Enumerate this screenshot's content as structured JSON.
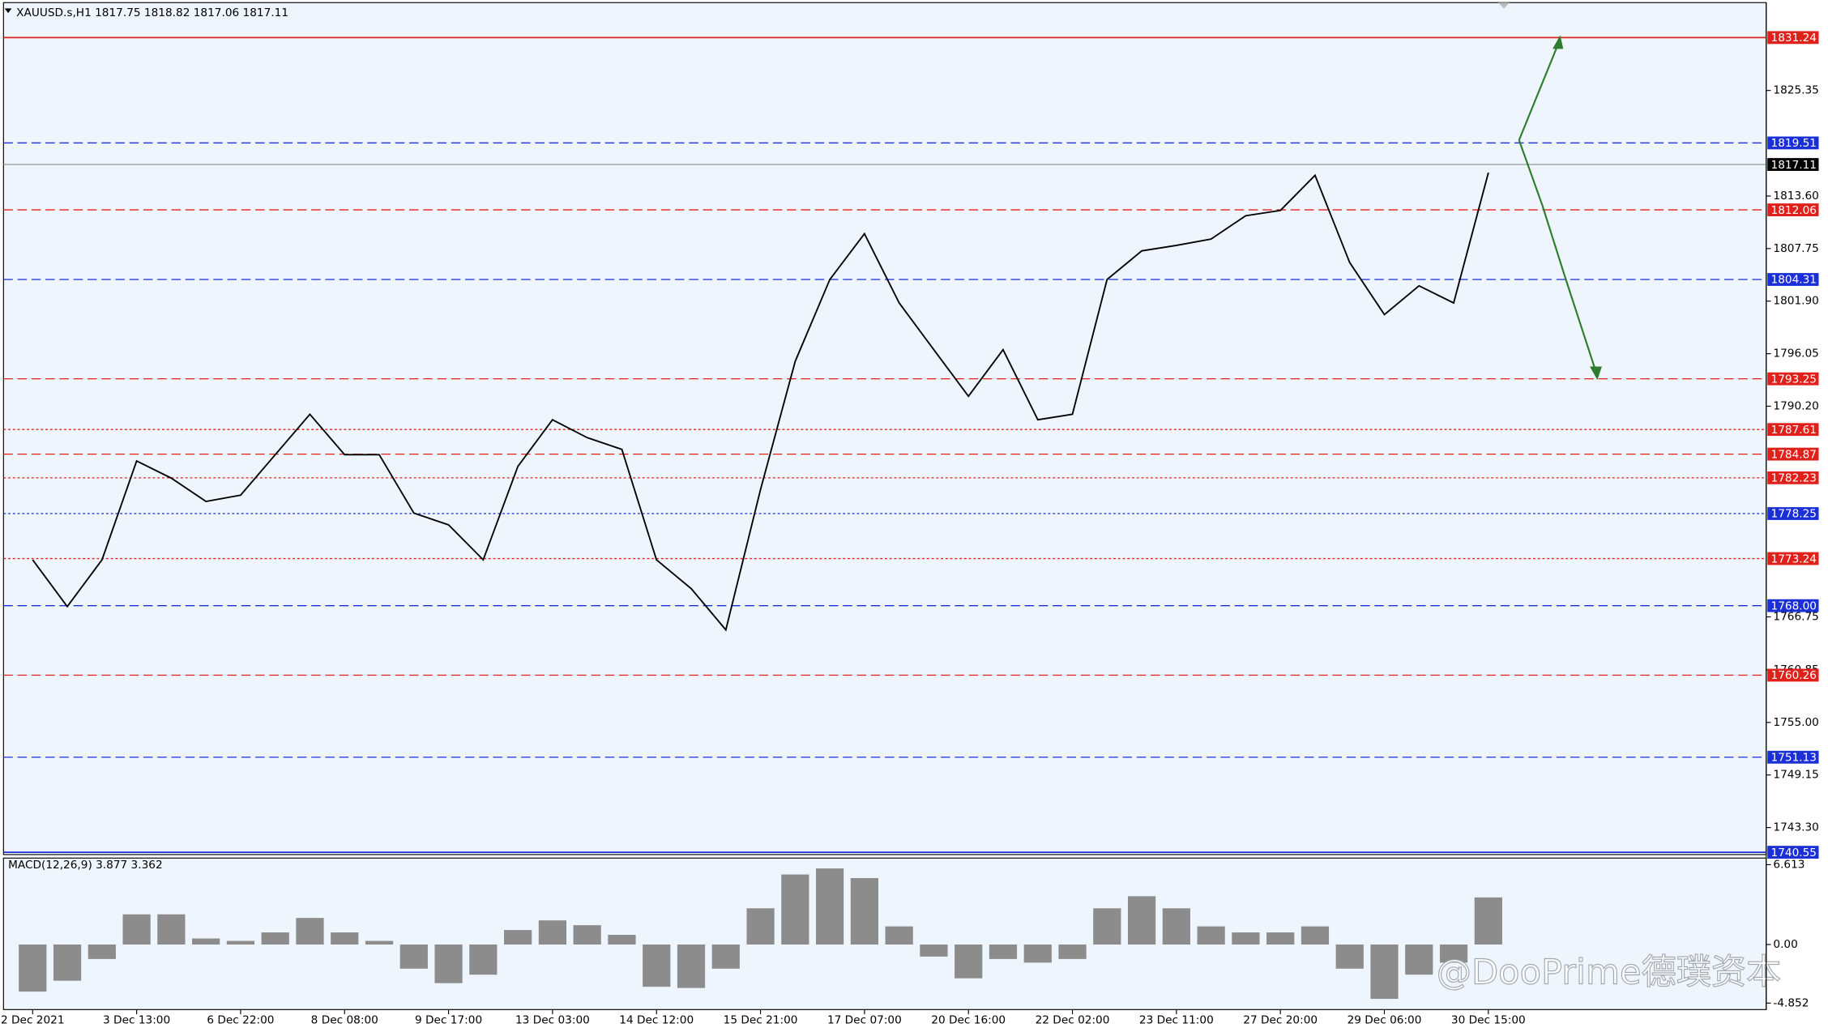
{
  "chart_data": [
    {
      "type": "line",
      "title": "XAUUSD.s,H1  1817.75 1818.82 1817.06 1817.11",
      "categories": [
        "2 Dec 2021",
        null,
        null,
        "3 Dec 13:00",
        null,
        null,
        "6 Dec 22:00",
        null,
        null,
        "8 Dec 08:00",
        null,
        null,
        "9 Dec 17:00",
        null,
        null,
        "13 Dec 03:00",
        null,
        null,
        "14 Dec 12:00",
        null,
        null,
        "15 Dec 21:00",
        null,
        null,
        "17 Dec 07:00",
        null,
        null,
        "20 Dec 16:00",
        null,
        null,
        "22 Dec 02:00",
        null,
        null,
        "23 Dec 11:00",
        null,
        null,
        "27 Dec 20:00",
        null,
        null,
        "29 Dec 06:00",
        null,
        null,
        "30 Dec 15:00"
      ],
      "values": [
        1773.1,
        1767.9,
        1773.1,
        1784.1,
        1782.2,
        1779.6,
        1780.3,
        1784.8,
        1789.3,
        1784.8,
        1784.8,
        1778.3,
        1777.0,
        1773.1,
        1783.5,
        1788.7,
        1786.7,
        1785.4,
        1773.1,
        1769.9,
        1765.3,
        1780.9,
        1795.2,
        1804.3,
        1809.4,
        1801.7,
        1796.5,
        1791.3,
        1796.5,
        1788.7,
        1789.3,
        1804.3,
        1807.5,
        1808.1,
        1808.8,
        1811.4,
        1812.0,
        1815.9,
        1806.2,
        1800.4,
        1803.6,
        1801.7,
        1816.2
      ],
      "color": "#000000",
      "ylim": [
        1740.29,
        1835.39
      ],
      "yticks": [
        1825.35,
        {
          "value": 1813.6,
          "label": "1813.60"
        },
        1807.75,
        {
          "value": 1801.9,
          "label": "1801.90"
        },
        1796.05,
        {
          "value": 1790.2,
          "label": "1790.20"
        },
        1766.75,
        1760.85,
        {
          "value": 1755,
          "label": "1755.00"
        },
        1749.15,
        {
          "value": 1743.3,
          "label": "1743.30"
        }
      ],
      "levels": [
        {
          "value": 1831.24,
          "color": "#e0201b",
          "style": "solid"
        },
        {
          "value": 1819.51,
          "color": "#1b2fd6",
          "style": "dashed"
        },
        {
          "value": 1817.11,
          "color": "#000000",
          "style": "current"
        },
        {
          "value": 1812.06,
          "color": "#e0201b",
          "style": "dashed"
        },
        {
          "value": 1804.31,
          "color": "#1b2fd6",
          "style": "dashed"
        },
        {
          "value": 1793.25,
          "color": "#e0201b",
          "style": "dashed"
        },
        {
          "value": 1787.61,
          "color": "#e0201b",
          "style": "dotted"
        },
        {
          "value": 1784.87,
          "color": "#e0201b",
          "style": "dashed"
        },
        {
          "value": 1782.23,
          "color": "#e0201b",
          "style": "dotted"
        },
        {
          "value": 1778.25,
          "color": "#1b2fd6",
          "style": "dotted"
        },
        {
          "value": 1773.24,
          "color": "#e0201b",
          "style": "dotted"
        },
        {
          "value": 1768,
          "label": "1768.00",
          "color": "#1b2fd6",
          "style": "dashed"
        },
        {
          "value": 1760.26,
          "color": "#e0201b",
          "style": "dashed"
        },
        {
          "value": 1751.13,
          "color": "#1b2fd6",
          "style": "dashed"
        },
        {
          "value": 1740.55,
          "color": "#1b2fd6",
          "style": "solid"
        }
      ]
    },
    {
      "type": "bar",
      "title": "MACD(12,26,9) 3.877 3.362",
      "values": [
        -3.9,
        -3.0,
        -1.2,
        2.5,
        2.5,
        0.5,
        0.3,
        1.0,
        2.2,
        1.0,
        0.3,
        -2.0,
        -3.2,
        -2.5,
        1.2,
        2.0,
        1.6,
        0.8,
        -3.5,
        -3.6,
        -2.0,
        3.0,
        5.8,
        6.3,
        5.5,
        1.5,
        -1.0,
        -2.8,
        -1.2,
        -1.5,
        -1.2,
        3.0,
        4.0,
        3.0,
        1.5,
        1.0,
        1.0,
        1.5,
        -2.0,
        -4.5,
        -2.5,
        -1.5,
        3.9
      ],
      "color": "#8c8c8c",
      "ylim": [
        -5.39,
        7.16
      ],
      "yticks": [
        6.613,
        {
          "value": 0,
          "label": "0.00"
        },
        -4.852
      ]
    }
  ],
  "watermark": "@DooPrime德璞资本"
}
